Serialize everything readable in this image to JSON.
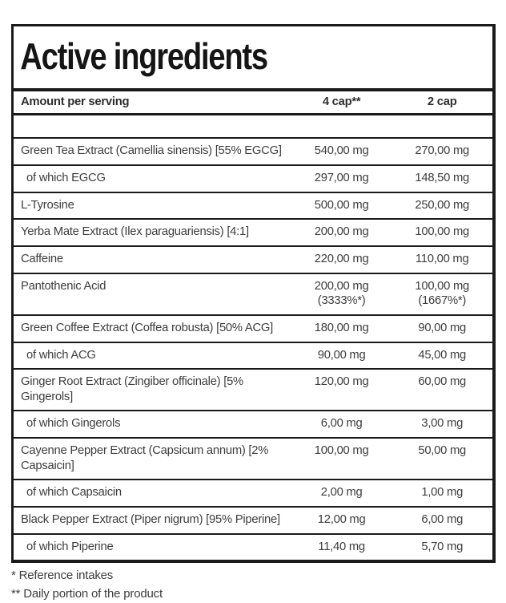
{
  "panel": {
    "title": "Active ingredients"
  },
  "table": {
    "header": {
      "amount": "Amount per serving",
      "cap4": "4 cap**",
      "cap2": "2 cap"
    },
    "rows": [
      {
        "name": "Green Tea Extract (Camellia sinensis) [55% EGCG]",
        "indent": false,
        "cap4": "540,00 mg",
        "cap2": "270,00 mg"
      },
      {
        "name": "of which EGCG",
        "indent": true,
        "cap4": "297,00 mg",
        "cap2": "148,50 mg"
      },
      {
        "name": "L-Tyrosine",
        "indent": false,
        "cap4": "500,00 mg",
        "cap2": "250,00 mg"
      },
      {
        "name": "Yerba Mate Extract (Ilex paraguariensis) [4:1]",
        "indent": false,
        "cap4": "200,00 mg",
        "cap2": "100,00 mg"
      },
      {
        "name": "Caffeine",
        "indent": false,
        "cap4": "220,00 mg",
        "cap2": "110,00 mg"
      },
      {
        "name": "Pantothenic Acid",
        "indent": false,
        "cap4": "200,00 mg",
        "cap4_note": "(3333%*)",
        "cap2": "100,00 mg",
        "cap2_note": "(1667%*)"
      },
      {
        "name": "Green Coffee Extract (Coffea robusta) [50% ACG]",
        "indent": false,
        "cap4": "180,00 mg",
        "cap2": "90,00 mg"
      },
      {
        "name": "of which ACG",
        "indent": true,
        "cap4": "90,00 mg",
        "cap2": "45,00 mg"
      },
      {
        "name": "Ginger Root Extract (Zingiber officinale) [5% Gingerols]",
        "indent": false,
        "cap4": "120,00 mg",
        "cap2": "60,00 mg"
      },
      {
        "name": "of which Gingerols",
        "indent": true,
        "cap4": "6,00 mg",
        "cap2": "3,00 mg"
      },
      {
        "name": "Cayenne Pepper Extract (Capsicum annum) [2% Capsaicin]",
        "indent": false,
        "cap4": "100,00 mg",
        "cap2": "50,00 mg"
      },
      {
        "name": "of which Capsaicin",
        "indent": true,
        "cap4": "2,00 mg",
        "cap2": "1,00 mg"
      },
      {
        "name": "Black Pepper Extract (Piper nigrum) [95% Piperine]",
        "indent": false,
        "cap4": "12,00 mg",
        "cap2": "6,00 mg"
      },
      {
        "name": "of which Piperine",
        "indent": true,
        "cap4": "11,40 mg",
        "cap2": "5,70 mg"
      }
    ]
  },
  "footnotes": [
    "* Reference intakes",
    "** Daily portion of the product"
  ],
  "colors": {
    "border": "#1a1a1a",
    "text": "#3d3d3d",
    "title": "#151515",
    "header_text": "#2e2e2e",
    "background": "#ffffff"
  }
}
